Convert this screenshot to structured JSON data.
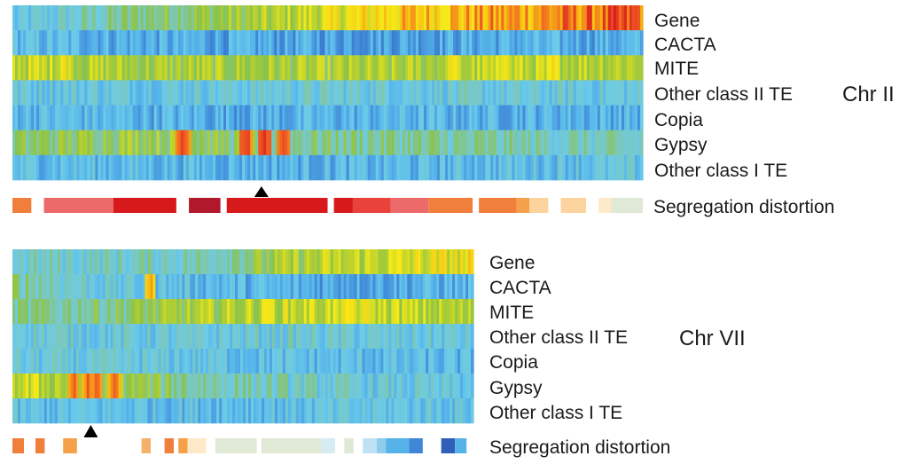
{
  "chart_data": [
    {
      "type": "heatmap",
      "chromosome": "Chr II",
      "rows": [
        "Gene",
        "CACTA",
        "MITE",
        "Other class II TE",
        "Copia",
        "Gypsy",
        "Other class I TE"
      ],
      "color_scale": [
        "#2f5fb8",
        "#3f86d6",
        "#55b3ea",
        "#6ccbe9",
        "#7cc8b8",
        "#8bc34a",
        "#b9d12f",
        "#f6ea18",
        "#f7b514",
        "#f05a24",
        "#d7191c"
      ],
      "row_profiles": [
        [
          0.25,
          0.45,
          0.55,
          0.75,
          0.82,
          0.9
        ],
        [
          0.25,
          0.2,
          0.18,
          0.18,
          0.2,
          0.2
        ],
        [
          0.62,
          0.55,
          0.55,
          0.55,
          0.6,
          0.6
        ],
        [
          0.3,
          0.3,
          0.32,
          0.32,
          0.3,
          0.3
        ],
        [
          0.25,
          0.22,
          0.2,
          0.22,
          0.22,
          0.22
        ],
        [
          0.45,
          0.55,
          0.45,
          0.42,
          0.38,
          0.35
        ],
        [
          0.26,
          0.24,
          0.22,
          0.22,
          0.26,
          0.28
        ]
      ],
      "hotspots": [
        {
          "row": "MITE",
          "centers": [
            0.08,
            0.7,
            0.78,
            0.86
          ],
          "level": 0.72
        },
        {
          "row": "Gypsy",
          "centers": [
            0.27,
            0.37,
            0.4,
            0.43
          ],
          "level": 0.95
        }
      ],
      "marker_position": 0.395,
      "segregation_distortion": {
        "label": "Segregation distortion",
        "blocks": [
          {
            "start": 0.0,
            "end": 0.03,
            "color": "#f07f3c"
          },
          {
            "start": 0.05,
            "end": 0.16,
            "color": "#ec6a6a"
          },
          {
            "start": 0.16,
            "end": 0.26,
            "color": "#d7191c"
          },
          {
            "start": 0.28,
            "end": 0.33,
            "color": "#b2182b"
          },
          {
            "start": 0.34,
            "end": 0.5,
            "color": "#d7191c"
          },
          {
            "start": 0.51,
            "end": 0.54,
            "color": "#d7191c"
          },
          {
            "start": 0.54,
            "end": 0.6,
            "color": "#e8423a"
          },
          {
            "start": 0.6,
            "end": 0.66,
            "color": "#ec6a6a"
          },
          {
            "start": 0.66,
            "end": 0.73,
            "color": "#f07f3c"
          },
          {
            "start": 0.74,
            "end": 0.8,
            "color": "#f07f3c"
          },
          {
            "start": 0.8,
            "end": 0.82,
            "color": "#f5a14a"
          },
          {
            "start": 0.82,
            "end": 0.85,
            "color": "#fdd49e"
          },
          {
            "start": 0.87,
            "end": 0.91,
            "color": "#fdd49e"
          },
          {
            "start": 0.93,
            "end": 0.95,
            "color": "#fee9c8"
          },
          {
            "start": 0.95,
            "end": 1.0,
            "color": "#dfe9d6"
          }
        ]
      }
    },
    {
      "type": "heatmap",
      "chromosome": "Chr VII",
      "rows": [
        "Gene",
        "CACTA",
        "MITE",
        "Other class II TE",
        "Copia",
        "Gypsy",
        "Other class I TE"
      ],
      "color_scale": [
        "#2f5fb8",
        "#3f86d6",
        "#55b3ea",
        "#6ccbe9",
        "#7cc8b8",
        "#8bc34a",
        "#b9d12f",
        "#f6ea18",
        "#f7b514",
        "#f05a24",
        "#d7191c"
      ],
      "row_profiles": [
        [
          0.35,
          0.35,
          0.38,
          0.55,
          0.62,
          0.68
        ],
        [
          0.45,
          0.3,
          0.25,
          0.2,
          0.2,
          0.22
        ],
        [
          0.4,
          0.45,
          0.55,
          0.62,
          0.62,
          0.55
        ],
        [
          0.35,
          0.3,
          0.3,
          0.32,
          0.3,
          0.3
        ],
        [
          0.3,
          0.3,
          0.28,
          0.25,
          0.24,
          0.22
        ],
        [
          0.62,
          0.55,
          0.42,
          0.35,
          0.3,
          0.28
        ],
        [
          0.25,
          0.26,
          0.26,
          0.26,
          0.28,
          0.28
        ]
      ],
      "hotspots": [
        {
          "row": "CACTA",
          "centers": [
            0.3
          ],
          "level": 0.82
        },
        {
          "row": "MITE",
          "centers": [
            0.55,
            0.73,
            0.77
          ],
          "level": 0.72
        },
        {
          "row": "Gypsy",
          "centers": [
            0.13,
            0.16,
            0.18,
            0.22
          ],
          "level": 0.9
        }
      ],
      "marker_position": 0.17,
      "segregation_distortion": {
        "label": "Segregation distortion",
        "blocks": [
          {
            "start": 0.0,
            "end": 0.025,
            "color": "#f07f3c"
          },
          {
            "start": 0.05,
            "end": 0.07,
            "color": "#f07f3c"
          },
          {
            "start": 0.11,
            "end": 0.14,
            "color": "#f5a14a"
          },
          {
            "start": 0.28,
            "end": 0.3,
            "color": "#f5b06a"
          },
          {
            "start": 0.33,
            "end": 0.35,
            "color": "#f07f3c"
          },
          {
            "start": 0.36,
            "end": 0.38,
            "color": "#f5a14a"
          },
          {
            "start": 0.38,
            "end": 0.42,
            "color": "#fee9c8"
          },
          {
            "start": 0.44,
            "end": 0.53,
            "color": "#dfe9d6"
          },
          {
            "start": 0.54,
            "end": 0.67,
            "color": "#dfe9d6"
          },
          {
            "start": 0.67,
            "end": 0.7,
            "color": "#d6ecf2"
          },
          {
            "start": 0.72,
            "end": 0.74,
            "color": "#dfe9d6"
          },
          {
            "start": 0.76,
            "end": 0.79,
            "color": "#bfe2f2"
          },
          {
            "start": 0.79,
            "end": 0.81,
            "color": "#8fcbea"
          },
          {
            "start": 0.81,
            "end": 0.86,
            "color": "#55b3ea"
          },
          {
            "start": 0.86,
            "end": 0.89,
            "color": "#3f86d6"
          },
          {
            "start": 0.93,
            "end": 0.96,
            "color": "#2f5fb8"
          },
          {
            "start": 0.96,
            "end": 0.985,
            "color": "#55b3ea"
          }
        ]
      }
    }
  ]
}
